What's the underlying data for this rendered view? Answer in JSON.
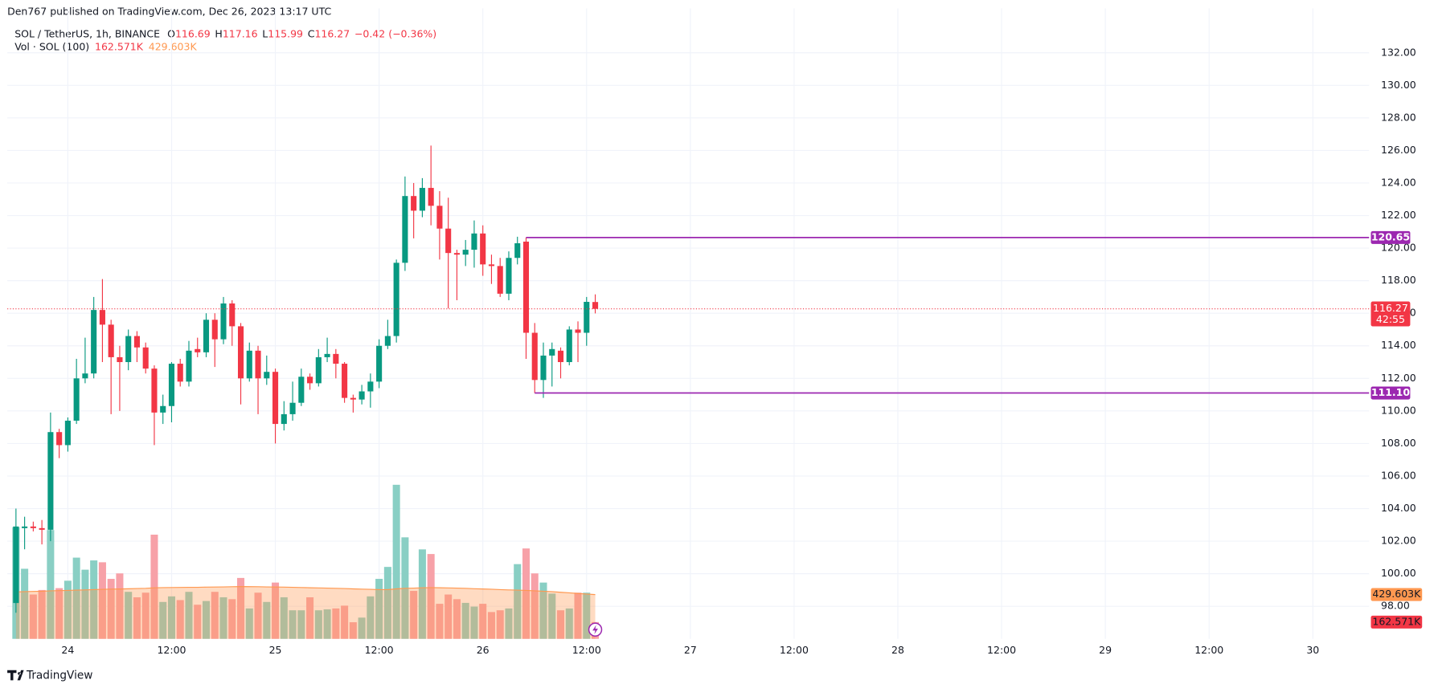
{
  "publisher": "Den767 published on TradingView.com, Dec 26, 2023 13:17 UTC",
  "legend": {
    "symbol": "SOL / TetherUS, 1h, BINANCE",
    "fields": [
      [
        "O",
        "116.69"
      ],
      [
        "H",
        "117.16"
      ],
      [
        "L",
        "115.99"
      ],
      [
        "C",
        "116.27"
      ]
    ],
    "change": "−0.42 (−0.36%)",
    "volume_name": "Vol · SOL (100)",
    "volume_value": "162.571K",
    "volume_ma_value": "429.603K"
  },
  "footer": "TradingView",
  "chart_data": {
    "type": "candlestick",
    "up_color": "#089981",
    "down_color": "#f23645",
    "x": [
      "2023-12-23T18:00",
      "2023-12-23T19:00",
      "2023-12-23T20:00",
      "2023-12-23T21:00",
      "2023-12-23T22:00",
      "2023-12-23T23:00",
      "2023-12-24T00:00",
      "2023-12-24T01:00",
      "2023-12-24T02:00",
      "2023-12-24T03:00",
      "2023-12-24T04:00",
      "2023-12-24T05:00",
      "2023-12-24T06:00",
      "2023-12-24T07:00",
      "2023-12-24T08:00",
      "2023-12-24T09:00",
      "2023-12-24T10:00",
      "2023-12-24T11:00",
      "2023-12-24T12:00",
      "2023-12-24T13:00",
      "2023-12-24T14:00",
      "2023-12-24T15:00",
      "2023-12-24T16:00",
      "2023-12-24T17:00",
      "2023-12-24T18:00",
      "2023-12-24T19:00",
      "2023-12-24T20:00",
      "2023-12-24T21:00",
      "2023-12-24T22:00",
      "2023-12-24T23:00",
      "2023-12-25T00:00",
      "2023-12-25T01:00",
      "2023-12-25T02:00",
      "2023-12-25T03:00",
      "2023-12-25T04:00",
      "2023-12-25T05:00",
      "2023-12-25T06:00",
      "2023-12-25T07:00",
      "2023-12-25T08:00",
      "2023-12-25T09:00",
      "2023-12-25T10:00",
      "2023-12-25T11:00",
      "2023-12-25T12:00",
      "2023-12-25T13:00",
      "2023-12-25T14:00",
      "2023-12-25T15:00",
      "2023-12-25T16:00",
      "2023-12-25T17:00",
      "2023-12-25T18:00",
      "2023-12-25T19:00",
      "2023-12-25T20:00",
      "2023-12-25T21:00",
      "2023-12-25T22:00",
      "2023-12-25T23:00",
      "2023-12-26T00:00",
      "2023-12-26T01:00",
      "2023-12-26T02:00",
      "2023-12-26T03:00",
      "2023-12-26T04:00",
      "2023-12-26T05:00",
      "2023-12-26T06:00",
      "2023-12-26T07:00",
      "2023-12-26T08:00",
      "2023-12-26T09:00",
      "2023-12-26T10:00",
      "2023-12-26T11:00",
      "2023-12-26T12:00",
      "2023-12-26T13:00"
    ],
    "open": [
      98.2,
      102.8,
      102.9,
      102.8,
      102.7,
      108.7,
      107.9,
      109.4,
      112.0,
      112.3,
      116.2,
      115.3,
      113.3,
      113.0,
      114.6,
      113.9,
      112.6,
      109.9,
      110.3,
      112.9,
      111.8,
      113.8,
      113.6,
      115.6,
      114.4,
      116.6,
      115.2,
      112.0,
      113.7,
      112.0,
      112.4,
      109.2,
      109.8,
      110.5,
      112.1,
      111.7,
      113.3,
      113.5,
      112.9,
      110.8,
      110.7,
      111.2,
      111.8,
      114.0,
      114.6,
      119.1,
      123.2,
      122.3,
      123.7,
      122.6,
      121.2,
      119.7,
      119.6,
      119.9,
      120.9,
      119.0,
      118.9,
      117.2,
      119.4,
      120.4,
      114.8,
      111.9,
      113.4,
      113.7,
      113.0,
      115.0,
      114.8,
      116.69
    ],
    "high": [
      104.0,
      103.5,
      103.2,
      103.3,
      109.9,
      108.9,
      109.6,
      113.2,
      114.5,
      117.0,
      118.1,
      115.6,
      114.0,
      115.0,
      114.9,
      114.2,
      112.8,
      111.0,
      113.0,
      113.2,
      114.3,
      114.5,
      116.0,
      116.0,
      117.0,
      116.8,
      115.4,
      114.2,
      114.0,
      113.4,
      112.6,
      110.6,
      111.8,
      112.6,
      112.3,
      113.8,
      114.5,
      113.8,
      113.0,
      111.0,
      111.6,
      112.3,
      114.4,
      115.6,
      119.3,
      124.4,
      124.0,
      124.3,
      126.3,
      123.5,
      123.1,
      119.9,
      120.5,
      121.7,
      121.4,
      119.6,
      119.4,
      119.8,
      120.7,
      120.65,
      115.4,
      114.2,
      114.2,
      113.9,
      115.2,
      115.5,
      117.0,
      117.16
    ],
    "low": [
      97.6,
      101.5,
      102.6,
      101.8,
      102.0,
      107.1,
      107.5,
      109.2,
      111.7,
      112.0,
      113.0,
      109.8,
      110.0,
      112.5,
      113.0,
      112.3,
      107.9,
      109.2,
      109.3,
      111.5,
      111.5,
      113.3,
      113.3,
      112.7,
      114.1,
      114.0,
      110.4,
      111.8,
      109.8,
      111.6,
      108.0,
      108.8,
      109.4,
      110.3,
      111.3,
      111.5,
      113.0,
      112.0,
      110.5,
      109.9,
      110.4,
      110.2,
      111.4,
      113.8,
      114.2,
      118.6,
      120.6,
      121.9,
      121.4,
      119.3,
      116.3,
      116.8,
      118.9,
      118.8,
      118.3,
      117.8,
      117.0,
      116.8,
      119.0,
      113.2,
      111.1,
      110.8,
      111.5,
      112.0,
      112.8,
      113.0,
      114.0,
      115.99
    ],
    "close": [
      102.9,
      102.9,
      102.8,
      102.7,
      108.7,
      107.9,
      109.4,
      112.0,
      112.3,
      116.2,
      115.3,
      113.3,
      113.0,
      114.6,
      113.9,
      112.6,
      109.9,
      110.3,
      112.9,
      111.8,
      113.7,
      113.6,
      115.6,
      114.4,
      116.6,
      115.2,
      112.0,
      113.7,
      112.0,
      112.4,
      109.2,
      109.8,
      110.5,
      112.1,
      111.7,
      113.3,
      113.5,
      112.9,
      110.8,
      110.7,
      111.2,
      111.8,
      114.0,
      114.6,
      119.1,
      123.2,
      122.3,
      123.7,
      122.6,
      121.2,
      119.7,
      119.6,
      119.9,
      120.9,
      119.0,
      118.9,
      117.2,
      119.4,
      120.3,
      114.8,
      111.9,
      113.4,
      113.8,
      113.0,
      115.0,
      114.8,
      116.7,
      116.27
    ],
    "volume": {
      "axis": "y2",
      "up_color": "#89cfc4",
      "down_color": "#f7a1a8",
      "values": [
        1083,
        680,
        430,
        474,
        1056,
        492,
        564,
        788,
        671,
        761,
        743,
        582,
        635,
        456,
        403,
        448,
        1011,
        358,
        412,
        376,
        456,
        331,
        367,
        456,
        403,
        385,
        591,
        295,
        448,
        358,
        546,
        403,
        277,
        277,
        403,
        277,
        286,
        295,
        322,
        161,
        206,
        412,
        582,
        698,
        1495,
        985,
        465,
        868,
        823,
        340,
        430,
        385,
        349,
        313,
        340,
        260,
        277,
        295,
        725,
        877,
        635,
        546,
        439,
        277,
        295,
        448,
        448,
        162.571
      ]
    },
    "volume_ma": {
      "axis": "y2",
      "color": "#ff9850",
      "values": [
        455,
        458,
        460,
        462,
        466,
        468,
        470,
        472,
        475,
        478,
        480,
        482,
        484,
        486,
        488,
        490,
        495,
        497,
        498,
        499,
        500,
        500,
        502,
        503,
        504,
        505,
        507,
        506,
        505,
        504,
        503,
        502,
        500,
        498,
        496,
        494,
        492,
        490,
        488,
        485,
        482,
        480,
        478,
        478,
        485,
        490,
        492,
        495,
        497,
        496,
        494,
        492,
        490,
        487,
        484,
        481,
        478,
        475,
        472,
        470,
        466,
        462,
        458,
        452,
        446,
        440,
        435,
        429.603
      ]
    },
    "xlim": [
      "2023-12-23T17:00",
      "2023-12-30T06:30"
    ],
    "xticks": [
      {
        "value": "2023-12-24T00:00",
        "label": "24"
      },
      {
        "value": "2023-12-24T12:00",
        "label": "12:00"
      },
      {
        "value": "2023-12-25T00:00",
        "label": "25"
      },
      {
        "value": "2023-12-25T12:00",
        "label": "12:00"
      },
      {
        "value": "2023-12-26T00:00",
        "label": "26"
      },
      {
        "value": "2023-12-26T12:00",
        "label": "12:00"
      },
      {
        "value": "2023-12-27T00:00",
        "label": "27"
      },
      {
        "value": "2023-12-27T12:00",
        "label": "12:00"
      },
      {
        "value": "2023-12-28T00:00",
        "label": "28"
      },
      {
        "value": "2023-12-28T12:00",
        "label": "12:00"
      },
      {
        "value": "2023-12-29T00:00",
        "label": "29"
      },
      {
        "value": "2023-12-29T12:00",
        "label": "12:00"
      },
      {
        "value": "2023-12-30T00:00",
        "label": "30"
      }
    ],
    "ylim": [
      96.0,
      133.6
    ],
    "yticks": [
      {
        "value": 98,
        "label": "98.00"
      },
      {
        "value": 100,
        "label": "100.00"
      },
      {
        "value": 102,
        "label": "102.00"
      },
      {
        "value": 104,
        "label": "104.00"
      },
      {
        "value": 106,
        "label": "106.00"
      },
      {
        "value": 108,
        "label": "108.00"
      },
      {
        "value": 110,
        "label": "110.00"
      },
      {
        "value": 112,
        "label": "112.00"
      },
      {
        "value": 114,
        "label": "114.00"
      },
      {
        "value": 116,
        "label": "116.00"
      },
      {
        "value": 118,
        "label": "118.00"
      },
      {
        "value": 120,
        "label": "120.00"
      },
      {
        "value": 122,
        "label": "122.00"
      },
      {
        "value": 124,
        "label": "124.00"
      },
      {
        "value": 126,
        "label": "126.00"
      },
      {
        "value": 128,
        "label": "128.00"
      },
      {
        "value": 130,
        "label": "130.00"
      },
      {
        "value": 132,
        "label": "132.00"
      }
    ],
    "y2lim": [
      0,
      5940
    ],
    "grid": true,
    "levels": [
      {
        "value": 120.65,
        "label": "120.65",
        "from": "2023-12-26T05:00",
        "color": "#9c27b0"
      },
      {
        "value": 111.1,
        "label": "111.10",
        "from": "2023-12-26T06:00",
        "color": "#9c27b0"
      }
    ],
    "last_price": {
      "value": 116.27,
      "countdown": "42:55",
      "color": "#f23645"
    },
    "volume_labels": [
      {
        "value": 429.603,
        "label": "429.603K",
        "color": "#ff9850"
      },
      {
        "value": 162.571,
        "label": "162.571K",
        "color": "#f23645"
      }
    ]
  }
}
